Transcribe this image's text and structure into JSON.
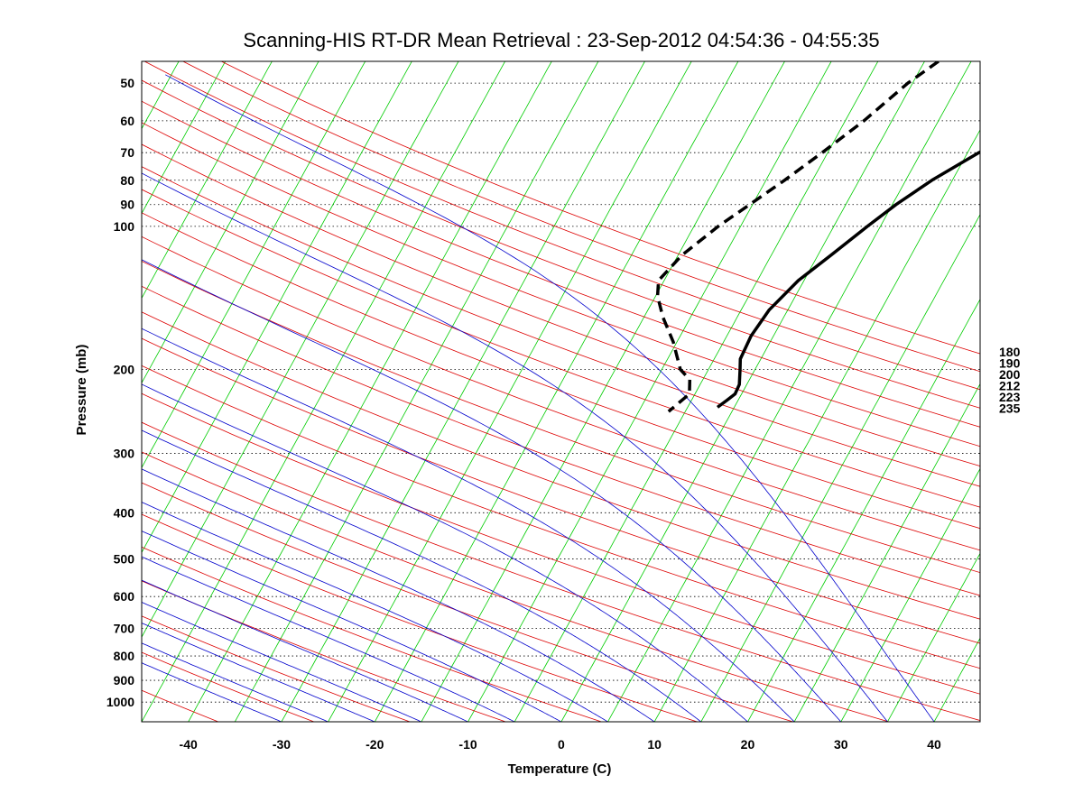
{
  "chart_data": {
    "type": "line",
    "subtype": "skew-t log-p diagram",
    "title": "Scanning-HIS RT-DR Mean Retrieval : 23-Sep-2012 04:54:36 - 04:55:35",
    "xlabel": "Temperature (C)",
    "ylabel": "Pressure (mb)",
    "xlim": [
      -45,
      45
    ],
    "ylim": [
      1100,
      45
    ],
    "yscale": "log",
    "x_ticks": [
      -40,
      -30,
      -20,
      -10,
      0,
      10,
      20,
      30,
      40
    ],
    "y_ticks": [
      50,
      60,
      70,
      80,
      90,
      100,
      200,
      300,
      400,
      500,
      600,
      700,
      800,
      900,
      1000
    ],
    "grid": "horizontal dotted at pressure ticks",
    "reference_lines": {
      "isotherms": {
        "color": "#00cc00",
        "step": 5
      },
      "dry_adiabats": {
        "color": "#dd0000"
      },
      "moist_adiabats": {
        "color": "#0000cc"
      }
    },
    "mixing_ratio_labels": [
      "180",
      "190",
      "200",
      "212",
      "223",
      "235"
    ],
    "series": [
      {
        "name": "Temperature",
        "style": "solid",
        "color": "#000000",
        "points": [
          [
            45,
            34.5
          ],
          [
            50,
            27.5
          ],
          [
            60,
            17
          ],
          [
            70,
            11.2
          ],
          [
            80,
            7.8
          ],
          [
            90,
            5.4
          ],
          [
            100,
            3.6
          ],
          [
            115,
            1.4
          ],
          [
            130,
            -0.6
          ],
          [
            150,
            -2.0
          ],
          [
            170,
            -2.4
          ],
          [
            190,
            -2.2
          ],
          [
            200,
            -1.6
          ],
          [
            215,
            -0.8
          ],
          [
            225,
            -0.7
          ],
          [
            232,
            -1.2
          ],
          [
            240,
            -1.8
          ]
        ]
      },
      {
        "name": "Dew point",
        "style": "dashed",
        "color": "#000000",
        "points": [
          [
            45,
            1.5
          ],
          [
            50,
            -0.5
          ],
          [
            60,
            -3.0
          ],
          [
            70,
            -5.6
          ],
          [
            80,
            -8.0
          ],
          [
            90,
            -10.3
          ],
          [
            100,
            -12.4
          ],
          [
            115,
            -14.6
          ],
          [
            130,
            -15.6
          ],
          [
            140,
            -14.8
          ],
          [
            155,
            -13.0
          ],
          [
            175,
            -10.4
          ],
          [
            200,
            -8.0
          ],
          [
            210,
            -6.4
          ],
          [
            225,
            -5.6
          ],
          [
            235,
            -6.2
          ],
          [
            245,
            -6.8
          ]
        ]
      }
    ]
  }
}
